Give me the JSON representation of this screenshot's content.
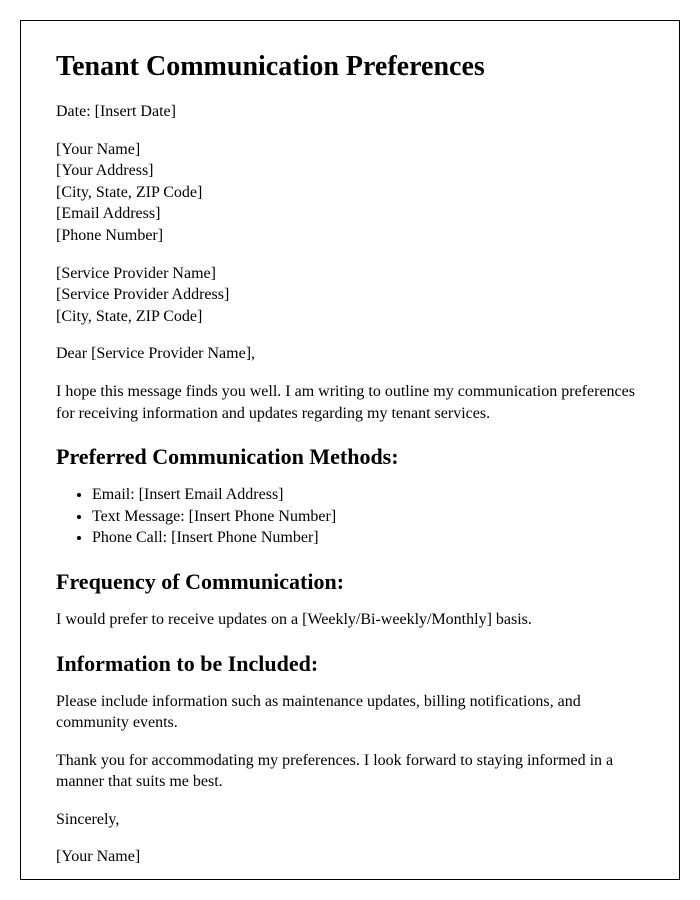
{
  "title": "Tenant Communication Preferences",
  "date_line": "Date: [Insert Date]",
  "sender": {
    "name": "[Your Name]",
    "address": "[Your Address]",
    "city_state_zip": "[City, State, ZIP Code]",
    "email": "[Email Address]",
    "phone": "[Phone Number]"
  },
  "recipient": {
    "name": "[Service Provider Name]",
    "address": "[Service Provider Address]",
    "city_state_zip": "[City, State, ZIP Code]"
  },
  "salutation": "Dear [Service Provider Name],",
  "intro": "I hope this message finds you well. I am writing to outline my communication preferences for receiving information and updates regarding my tenant services.",
  "section_methods": {
    "heading": "Preferred Communication Methods:",
    "items": {
      "email": "Email: [Insert Email Address]",
      "text": "Text Message: [Insert Phone Number]",
      "phone": "Phone Call: [Insert Phone Number]"
    }
  },
  "section_frequency": {
    "heading": "Frequency of Communication:",
    "body": "I would prefer to receive updates on a [Weekly/Bi-weekly/Monthly] basis."
  },
  "section_info": {
    "heading": "Information to be Included:",
    "body": "Please include information such as maintenance updates, billing notifications, and community events."
  },
  "closing_thanks": "Thank you for accommodating my preferences. I look forward to staying informed in a manner that suits me best.",
  "signoff": "Sincerely,",
  "signature": "[Your Name]"
}
